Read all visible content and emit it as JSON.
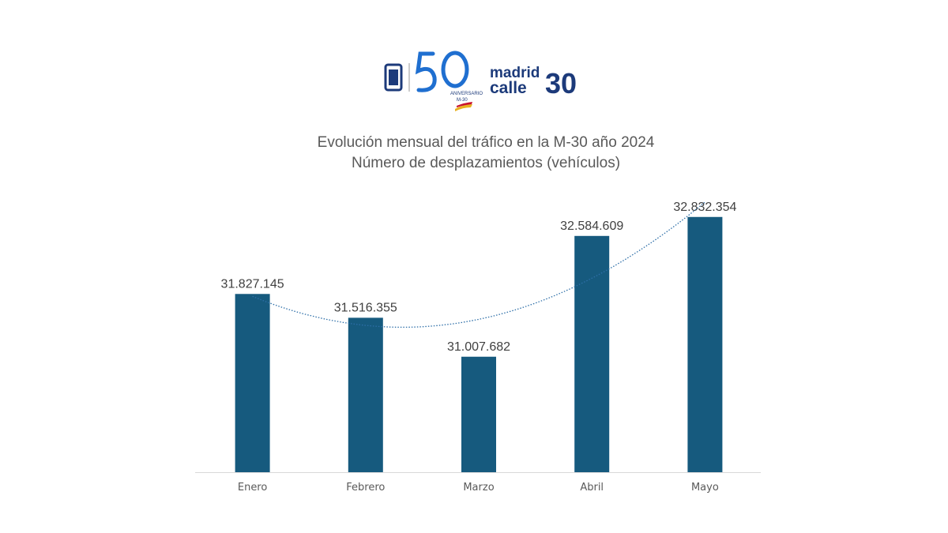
{
  "logo": {
    "text": [
      "50",
      "ANIVERSARIO",
      "M-30",
      "madrid",
      "calle",
      "30"
    ],
    "colors": {
      "blue": "#1f6fd0",
      "navy": "#1c3a7a"
    }
  },
  "chart_data": {
    "type": "bar",
    "title": "Evolución mensual del tráfico en la M-30 año 2024",
    "subtitle": "Número de desplazamientos (vehículos)",
    "categories": [
      "Enero",
      "Febrero",
      "Marzo",
      "Abril",
      "Mayo"
    ],
    "values": [
      31827145,
      31516355,
      31007682,
      32584609,
      32832354
    ],
    "data_labels": [
      "31.827.145",
      "31.516.355",
      "31.007.682",
      "32.584.609",
      "32.832.354"
    ],
    "ylim": [
      29500000,
      33500000
    ],
    "y_axis_visible": false,
    "grid": false,
    "trendline": "polynomial (order 2), dotted",
    "colors": {
      "bar": "#165a7e",
      "trendline": "#2e6fa8",
      "axis": "#d9d9d9"
    }
  }
}
